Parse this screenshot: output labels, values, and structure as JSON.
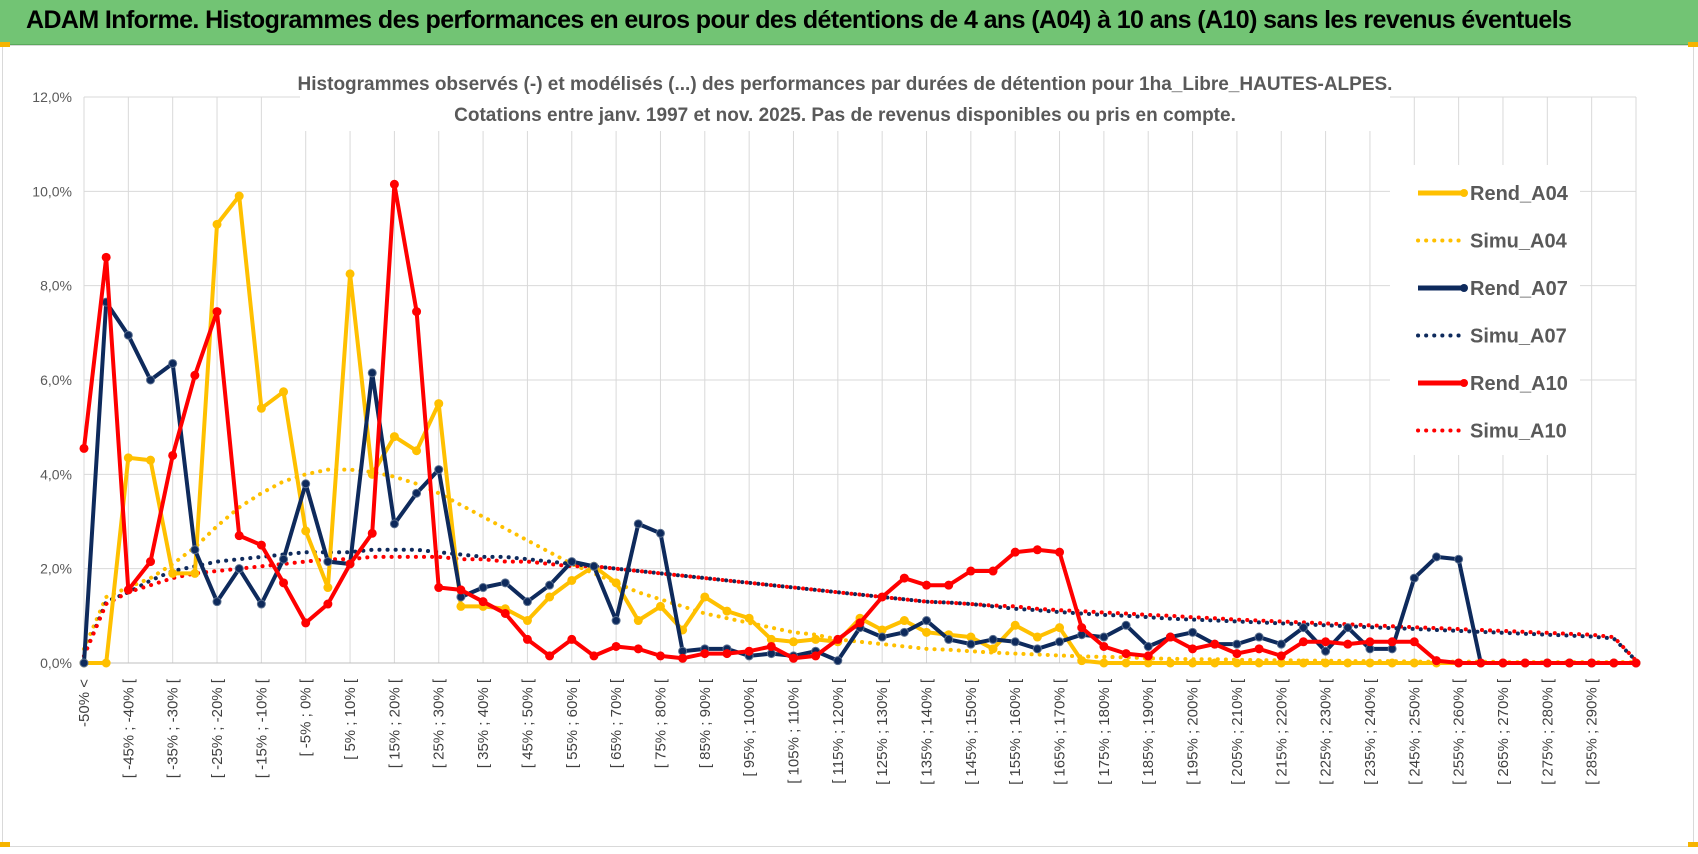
{
  "banner": {
    "title": "ADAM Informe. Histogrammes des performances en euros pour des détentions de 4 ans (A04) à 10 ans (A10) sans les revenus éventuels",
    "background": "#72c474"
  },
  "chart_data": {
    "type": "line",
    "title_line1": "Histogrammes observés (-) et modélisés (...) des performances par durées de détention pour 1ha_Libre_HAUTES-ALPES.",
    "title_line2": "Cotations entre janv. 1997 et nov. 2025. Pas de revenus disponibles ou pris en compte.",
    "ylim": [
      0,
      12
    ],
    "y_ticks": [
      "0,0%",
      "2,0%",
      "4,0%",
      "6,0%",
      "8,0%",
      "10,0%",
      "12,0%"
    ],
    "grid": true,
    "legend_position": "right",
    "categories": [
      "-50% <",
      "[ -50% ; -45% [",
      "[ -45% ; -40% [",
      "[ -40% ; -35% [",
      "[ -35% ; -30% [",
      "[ -30% ; -25% [",
      "[ -25% ; -20% [",
      "[ -20% ; -15% [",
      "[ -15% ; -10% [",
      "[ -10% ; -5% [",
      "[ -5% ; 0% [",
      "[ 0% ; 5% [",
      "[ 5% ; 10% [",
      "[ 10% ; 15% [",
      "[ 15% ; 20% [",
      "[ 20% ; 25% [",
      "[ 25% ; 30% [",
      "[ 30% ; 35% [",
      "[ 35% ; 40% [",
      "[ 40% ; 45% [",
      "[ 45% ; 50% [",
      "[ 50% ; 55% [",
      "[ 55% ; 60% [",
      "[ 60% ; 65% [",
      "[ 65% ; 70% [",
      "[ 70% ; 75% [",
      "[ 75% ; 80% [",
      "[ 80% ; 85% [",
      "[ 85% ; 90% [",
      "[ 90% ; 95% [",
      "[ 95% ; 100% [",
      "[ 100% ; 105% [",
      "[ 105% ; 110% [",
      "[ 110% ; 115% [",
      "[ 115% ; 120% [",
      "[ 120% ; 125% [",
      "[ 125% ; 130% [",
      "[ 130% ; 135% [",
      "[ 135% ; 140% [",
      "[ 140% ; 145% [",
      "[ 145% ; 150% [",
      "[ 150% ; 155% [",
      "[ 155% ; 160% [",
      "[ 160% ; 165% [",
      "[ 165% ; 170% [",
      "[ 170% ; 175% [",
      "[ 175% ; 180% [",
      "[ 180% ; 185% [",
      "[ 185% ; 190% [",
      "[ 190% ; 195% [",
      "[ 195% ; 200% [",
      "[ 200% ; 205% [",
      "[ 205% ; 210% [",
      "[ 210% ; 215% [",
      "[ 215% ; 220% [",
      "[ 220% ; 225% [",
      "[ 225% ; 230% [",
      "[ 230% ; 235% [",
      "[ 235% ; 240% [",
      "[ 240% ; 245% [",
      "[ 245% ; 250% [",
      "[ 250% ; 255% [",
      "[ 255% ; 260% [",
      "[ 260% ; 265% [",
      "[ 265% ; 270% [",
      "[ 270% ; 275% [",
      "[ 275% ; 280% [",
      "[ 280% ; 285% [",
      "[ 285% ; 290% [",
      "[ 290% ; 295% [",
      "[ 295% ; 300% ["
    ],
    "visible_x_labels": [
      "-50% <",
      "[ -45% ; -40% [",
      "[ -35% ; -30% [",
      "[ -25% ; -20% [",
      "[ -15% ; -10% [",
      "[ -5% ; 0% [",
      "[ 5% ; 10% [",
      "[ 15% ; 20% [",
      "[ 25% ; 30% [",
      "[ 35% ; 40% [",
      "[ 45% ; 50% [",
      "[ 55% ; 60% [",
      "[ 65% ; 70% [",
      "[ 75% ; 80% [",
      "[ 85% ; 90% [",
      "[ 95% ; 100% [",
      "[ 105% ; 110% [",
      "[ 115% ; 120% [",
      "[ 125% ; 130% [",
      "[ 135% ; 140% [",
      "[ 145% ; 150% [",
      "[ 155% ; 160% [",
      "[ 165% ; 170% [",
      "[ 175% ; 180% [",
      "[ 185% ; 190% [",
      "[ 195% ; 200% [",
      "[ 205% ; 210% [",
      "[ 215% ; 220% [",
      "[ 225% ; 230% [",
      "[ 235% ; 240% [",
      "[ 245% ; 250% [",
      "[ 255% ; 260% [",
      "[ 265% ; 270% [",
      "[ 275% ; 280% [",
      "[ 285% ; 290% ["
    ],
    "series": [
      {
        "name": "Rend_A04",
        "style": "solid",
        "color": "#ffc000",
        "values": [
          0,
          0,
          4.35,
          4.3,
          1.9,
          1.9,
          9.3,
          9.9,
          5.4,
          5.75,
          2.8,
          1.6,
          8.25,
          4.0,
          4.8,
          4.5,
          5.5,
          1.2,
          1.2,
          1.15,
          0.9,
          1.4,
          1.75,
          2.05,
          1.7,
          0.9,
          1.2,
          0.7,
          1.4,
          1.1,
          0.95,
          0.5,
          0.45,
          0.5,
          0.45,
          0.95,
          0.7,
          0.9,
          0.65,
          0.6,
          0.55,
          0.3,
          0.8,
          0.55,
          0.75,
          0.05,
          0,
          0,
          0,
          0,
          0,
          0,
          0,
          0,
          0,
          0,
          0,
          0,
          0,
          0,
          0,
          0,
          0,
          0,
          0,
          0,
          0,
          0,
          0,
          0,
          0
        ]
      },
      {
        "name": "Simu_A04",
        "style": "dotted",
        "color": "#ffc000",
        "values": [
          0.3,
          1.4,
          1.6,
          1.8,
          2.1,
          2.45,
          2.9,
          3.3,
          3.6,
          3.85,
          4.0,
          4.1,
          4.1,
          4.05,
          3.95,
          3.8,
          3.6,
          3.35,
          3.1,
          2.85,
          2.6,
          2.35,
          2.1,
          1.9,
          1.7,
          1.5,
          1.35,
          1.2,
          1.05,
          0.95,
          0.85,
          0.75,
          0.65,
          0.6,
          0.5,
          0.45,
          0.4,
          0.35,
          0.3,
          0.28,
          0.25,
          0.22,
          0.2,
          0.18,
          0.16,
          0.14,
          0.13,
          0.12,
          0.1,
          0.09,
          0.08,
          0.08,
          0.07,
          0.06,
          0.06,
          0.05,
          0.05,
          0.04,
          0.04,
          0.04,
          0.03,
          0.03,
          0.03,
          0.03,
          0.02,
          0.02,
          0.02,
          0.02,
          0.02,
          0.02,
          0.02
        ]
      },
      {
        "name": "Rend_A07",
        "style": "solid",
        "color": "#0e2a5c",
        "values": [
          0,
          7.65,
          6.95,
          6.0,
          6.35,
          2.4,
          1.3,
          2.0,
          1.25,
          2.2,
          3.8,
          2.15,
          2.1,
          6.15,
          2.95,
          3.6,
          4.1,
          1.4,
          1.6,
          1.7,
          1.3,
          1.65,
          2.15,
          2.05,
          0.9,
          2.95,
          2.75,
          0.25,
          0.3,
          0.3,
          0.15,
          0.2,
          0.15,
          0.25,
          0.05,
          0.75,
          0.55,
          0.65,
          0.9,
          0.5,
          0.4,
          0.5,
          0.45,
          0.3,
          0.45,
          0.6,
          0.55,
          0.8,
          0.35,
          0.55,
          0.65,
          0.4,
          0.4,
          0.55,
          0.4,
          0.75,
          0.25,
          0.75,
          0.3,
          0.3,
          1.8,
          2.25,
          2.2,
          0,
          0,
          0,
          0,
          0,
          0,
          0,
          0
        ]
      },
      {
        "name": "Simu_A07",
        "style": "dotted",
        "color": "#0e2a5c",
        "values": [
          0.15,
          1.3,
          1.5,
          1.75,
          1.95,
          2.05,
          2.15,
          2.2,
          2.25,
          2.3,
          2.35,
          2.35,
          2.35,
          2.4,
          2.4,
          2.4,
          2.35,
          2.3,
          2.25,
          2.25,
          2.2,
          2.15,
          2.1,
          2.05,
          2.0,
          1.95,
          1.9,
          1.85,
          1.8,
          1.75,
          1.7,
          1.65,
          1.6,
          1.55,
          1.5,
          1.45,
          1.4,
          1.35,
          1.3,
          1.28,
          1.25,
          1.2,
          1.15,
          1.12,
          1.08,
          1.05,
          1.02,
          1.0,
          0.97,
          0.94,
          0.92,
          0.9,
          0.88,
          0.86,
          0.84,
          0.82,
          0.8,
          0.78,
          0.76,
          0.74,
          0.72,
          0.7,
          0.68,
          0.66,
          0.64,
          0.62,
          0.6,
          0.58,
          0.56,
          0.52,
          0.05
        ]
      },
      {
        "name": "Rend_A10",
        "style": "solid",
        "color": "#ff0000",
        "values": [
          4.55,
          8.6,
          1.55,
          2.15,
          4.4,
          6.1,
          7.45,
          2.7,
          2.5,
          1.7,
          0.85,
          1.25,
          2.1,
          2.75,
          10.15,
          7.45,
          1.6,
          1.55,
          1.3,
          1.05,
          0.5,
          0.15,
          0.5,
          0.15,
          0.35,
          0.3,
          0.15,
          0.1,
          0.2,
          0.2,
          0.25,
          0.35,
          0.1,
          0.15,
          0.5,
          0.85,
          1.4,
          1.8,
          1.65,
          1.65,
          1.95,
          1.95,
          2.35,
          2.4,
          2.35,
          0.75,
          0.35,
          0.2,
          0.15,
          0.55,
          0.3,
          0.4,
          0.2,
          0.3,
          0.15,
          0.45,
          0.45,
          0.4,
          0.45,
          0.45,
          0.45,
          0.05,
          0,
          0,
          0,
          0,
          0,
          0,
          0,
          0,
          0
        ]
      },
      {
        "name": "Simu_A10",
        "style": "dotted",
        "color": "#ff0000",
        "values": [
          0.15,
          1.25,
          1.5,
          1.65,
          1.8,
          1.9,
          1.95,
          2.0,
          2.05,
          2.1,
          2.15,
          2.2,
          2.2,
          2.25,
          2.25,
          2.25,
          2.25,
          2.2,
          2.2,
          2.15,
          2.15,
          2.1,
          2.05,
          2.05,
          2.0,
          1.95,
          1.9,
          1.85,
          1.8,
          1.75,
          1.7,
          1.65,
          1.6,
          1.55,
          1.5,
          1.45,
          1.4,
          1.35,
          1.3,
          1.28,
          1.25,
          1.22,
          1.2,
          1.15,
          1.12,
          1.1,
          1.07,
          1.05,
          1.02,
          1.0,
          0.97,
          0.95,
          0.92,
          0.9,
          0.88,
          0.86,
          0.84,
          0.82,
          0.8,
          0.78,
          0.76,
          0.74,
          0.72,
          0.7,
          0.68,
          0.66,
          0.64,
          0.62,
          0.6,
          0.55,
          0.05
        ]
      }
    ]
  }
}
